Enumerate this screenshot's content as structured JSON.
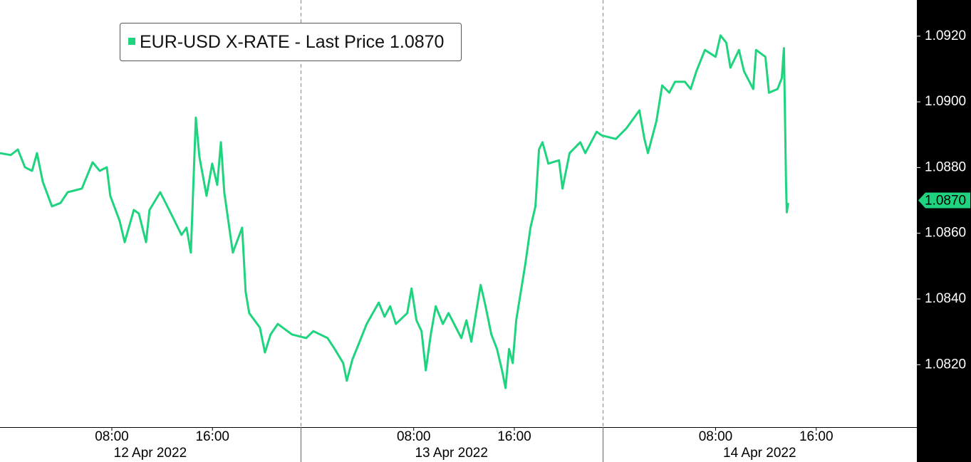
{
  "chart_data": {
    "type": "line",
    "series": [
      {
        "name": "EUR-USD X-RATE - Last Price",
        "color": "#1fd47e",
        "x": [
          -0.89,
          -0.04,
          0.53,
          1.09,
          1.66,
          2.05,
          2.51,
          3.24,
          3.92,
          4.49,
          5.62,
          6.47,
          7.04,
          7.6,
          7.88,
          8.62,
          9.02,
          9.75,
          10.15,
          10.72,
          11.0,
          11.85,
          12.7,
          13.54,
          13.94,
          14.28,
          14.68,
          14.96,
          15.53,
          15.98,
          16.38,
          16.67,
          16.94,
          17.62,
          18.36,
          18.64,
          18.92,
          19.77,
          20.17,
          20.62,
          21.19,
          22.32,
          23.45,
          24.02,
          25.15,
          25.72,
          26.39,
          26.68,
          27.13,
          27.7,
          28.26,
          29.22,
          29.68,
          30.13,
          30.58,
          31.49,
          31.83,
          32.22,
          32.62,
          32.96,
          33.36,
          33.75,
          34.32,
          34.77,
          35.79,
          36.19,
          36.58,
          37.32,
          37.71,
          38.17,
          38.62,
          39.02,
          39.3,
          39.58,
          39.87,
          40.15,
          40.88,
          41.28,
          41.68,
          41.96,
          42.24,
          42.7,
          43.55,
          43.83,
          44.39,
          45.24,
          45.64,
          46.54,
          46.94,
          48.07,
          48.92,
          49.94,
          50.34,
          50.62,
          51.3,
          51.75,
          52.32,
          52.77,
          53.56,
          54.02,
          54.47,
          55.15,
          56.0,
          56.39,
          56.85,
          57.18,
          57.86,
          58.26,
          58.99,
          59.22,
          59.96,
          60.24,
          60.92,
          61.26,
          61.43,
          61.6,
          61.66,
          61.77
        ],
        "values": [
          1.08844,
          1.08838,
          1.08855,
          1.08801,
          1.0879,
          1.08844,
          1.08757,
          1.08682,
          1.08692,
          1.08725,
          1.08736,
          1.08816,
          1.0879,
          1.08801,
          1.08714,
          1.08638,
          1.08573,
          1.08671,
          1.0866,
          1.08573,
          1.08671,
          1.08725,
          1.0866,
          1.08595,
          1.08617,
          1.08541,
          1.08952,
          1.08833,
          1.08714,
          1.08812,
          1.08747,
          1.08877,
          1.08725,
          1.08541,
          1.08617,
          1.08422,
          1.08357,
          1.08313,
          1.08237,
          1.08292,
          1.08324,
          1.08292,
          1.08281,
          1.08302,
          1.08281,
          1.08248,
          1.08205,
          1.08151,
          1.08216,
          1.0827,
          1.08324,
          1.08389,
          1.08346,
          1.08378,
          1.08324,
          1.08357,
          1.08432,
          1.08335,
          1.08302,
          1.08183,
          1.08292,
          1.08378,
          1.08324,
          1.08357,
          1.08281,
          1.08335,
          1.0827,
          1.08443,
          1.08378,
          1.08292,
          1.08248,
          1.08183,
          1.08129,
          1.08248,
          1.08205,
          1.08335,
          1.08508,
          1.08617,
          1.08682,
          1.08855,
          1.08877,
          1.08812,
          1.08822,
          1.08736,
          1.08844,
          1.08877,
          1.08844,
          1.08909,
          1.08898,
          1.08887,
          1.0892,
          1.08974,
          1.08887,
          1.08844,
          1.08942,
          1.0905,
          1.09028,
          1.09061,
          1.09061,
          1.09039,
          1.09093,
          1.09158,
          1.09137,
          1.09202,
          1.0918,
          1.09104,
          1.09158,
          1.09093,
          1.09039,
          1.09158,
          1.09137,
          1.09028,
          1.09039,
          1.09072,
          1.09163,
          1.08747,
          1.08664,
          1.08692
        ]
      }
    ],
    "last_price": {
      "value": 1.087,
      "label": "1.0870"
    },
    "xlim": [
      -0.89,
      72
    ],
    "xticks": [
      {
        "value": 8,
        "label": "08:00"
      },
      {
        "value": 16,
        "label": "16:00"
      },
      {
        "value": 32,
        "label": "08:00"
      },
      {
        "value": 40,
        "label": "16:00"
      },
      {
        "value": 56,
        "label": "08:00"
      },
      {
        "value": 64,
        "label": "16:00"
      }
    ],
    "day_separators": [
      23,
      47
    ],
    "dates": [
      "12 Apr 2022",
      "13 Apr 2022",
      "14 Apr 2022"
    ],
    "ylim": [
      1.0801,
      1.0931
    ],
    "yticks": [
      {
        "value": 1.082,
        "label": "1.0820"
      },
      {
        "value": 1.084,
        "label": "1.0840"
      },
      {
        "value": 1.086,
        "label": "1.0860"
      },
      {
        "value": 1.088,
        "label": "1.0880"
      },
      {
        "value": 1.09,
        "label": "1.0900"
      },
      {
        "value": 1.092,
        "label": "1.0920"
      }
    ],
    "axis_side": "right"
  }
}
